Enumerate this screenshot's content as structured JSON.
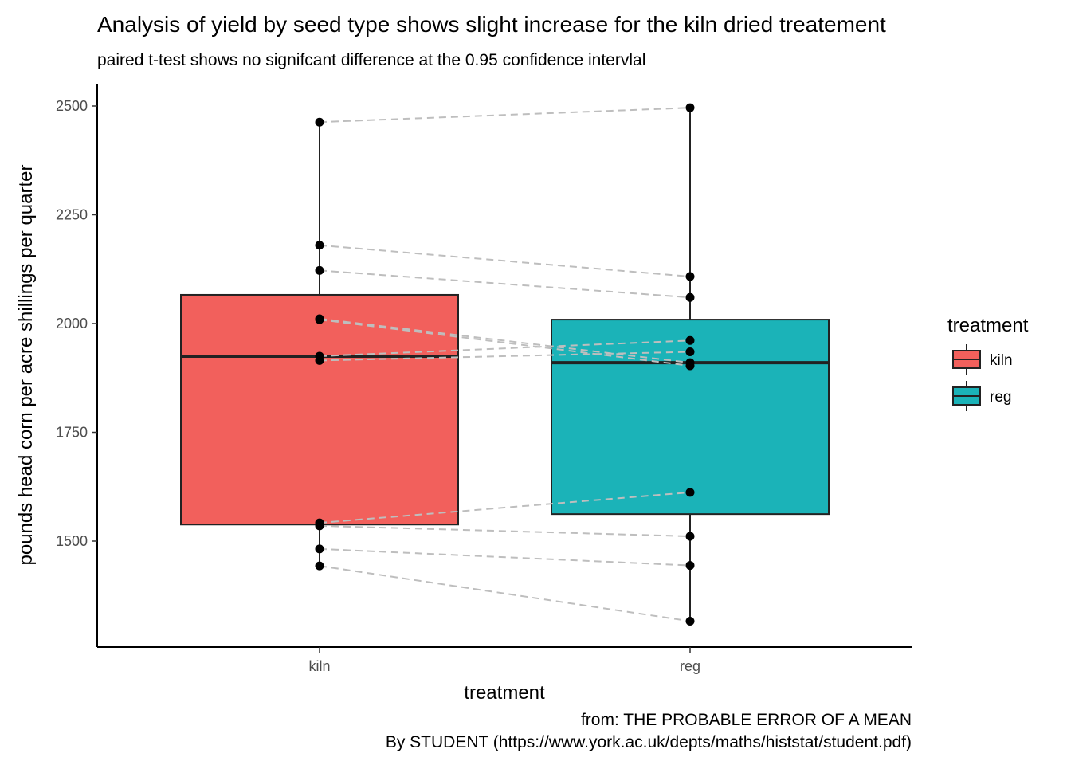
{
  "chart_data": {
    "type": "box",
    "title": "Analysis of yield by seed type shows slight increase for the kiln dried treatement",
    "subtitle": "paired t-test shows no signifcant difference at the 0.95 confidence intervlal",
    "xlabel": "treatment",
    "ylabel": "pounds head corn per acre shillings per quarter",
    "caption_lines": [
      "from: THE PROBABLE ERROR OF A MEAN",
      "By STUDENT (https://www.york.ac.uk/depts/maths/histstat/student.pdf)"
    ],
    "categories": [
      "kiln",
      "reg"
    ],
    "yticks": [
      1500,
      1750,
      2000,
      2250,
      2500
    ],
    "ylim": [
      1290,
      2550
    ],
    "legend": {
      "title": "treatment",
      "position": "right",
      "entries": [
        "kiln",
        "reg"
      ]
    },
    "colors": {
      "kiln": "#F2605C",
      "reg": "#1BB3B8",
      "pair_line": "#BEBEBE"
    },
    "boxes": [
      {
        "name": "kiln",
        "min": 1443,
        "q1": 1538,
        "median": 1925,
        "q3": 2066,
        "max": 2463
      },
      {
        "name": "reg",
        "min": 1316,
        "q1": 1562,
        "median": 1910,
        "q3": 2009,
        "max": 2496
      }
    ],
    "pairs": {
      "kiln": [
        2009,
        1915,
        2011,
        2463,
        2180,
        1925,
        2122,
        1482,
        1542,
        1443,
        1535
      ],
      "reg": [
        1903,
        1935,
        1910,
        2496,
        2108,
        1961,
        2060,
        1444,
        1612,
        1316,
        1511
      ]
    }
  }
}
